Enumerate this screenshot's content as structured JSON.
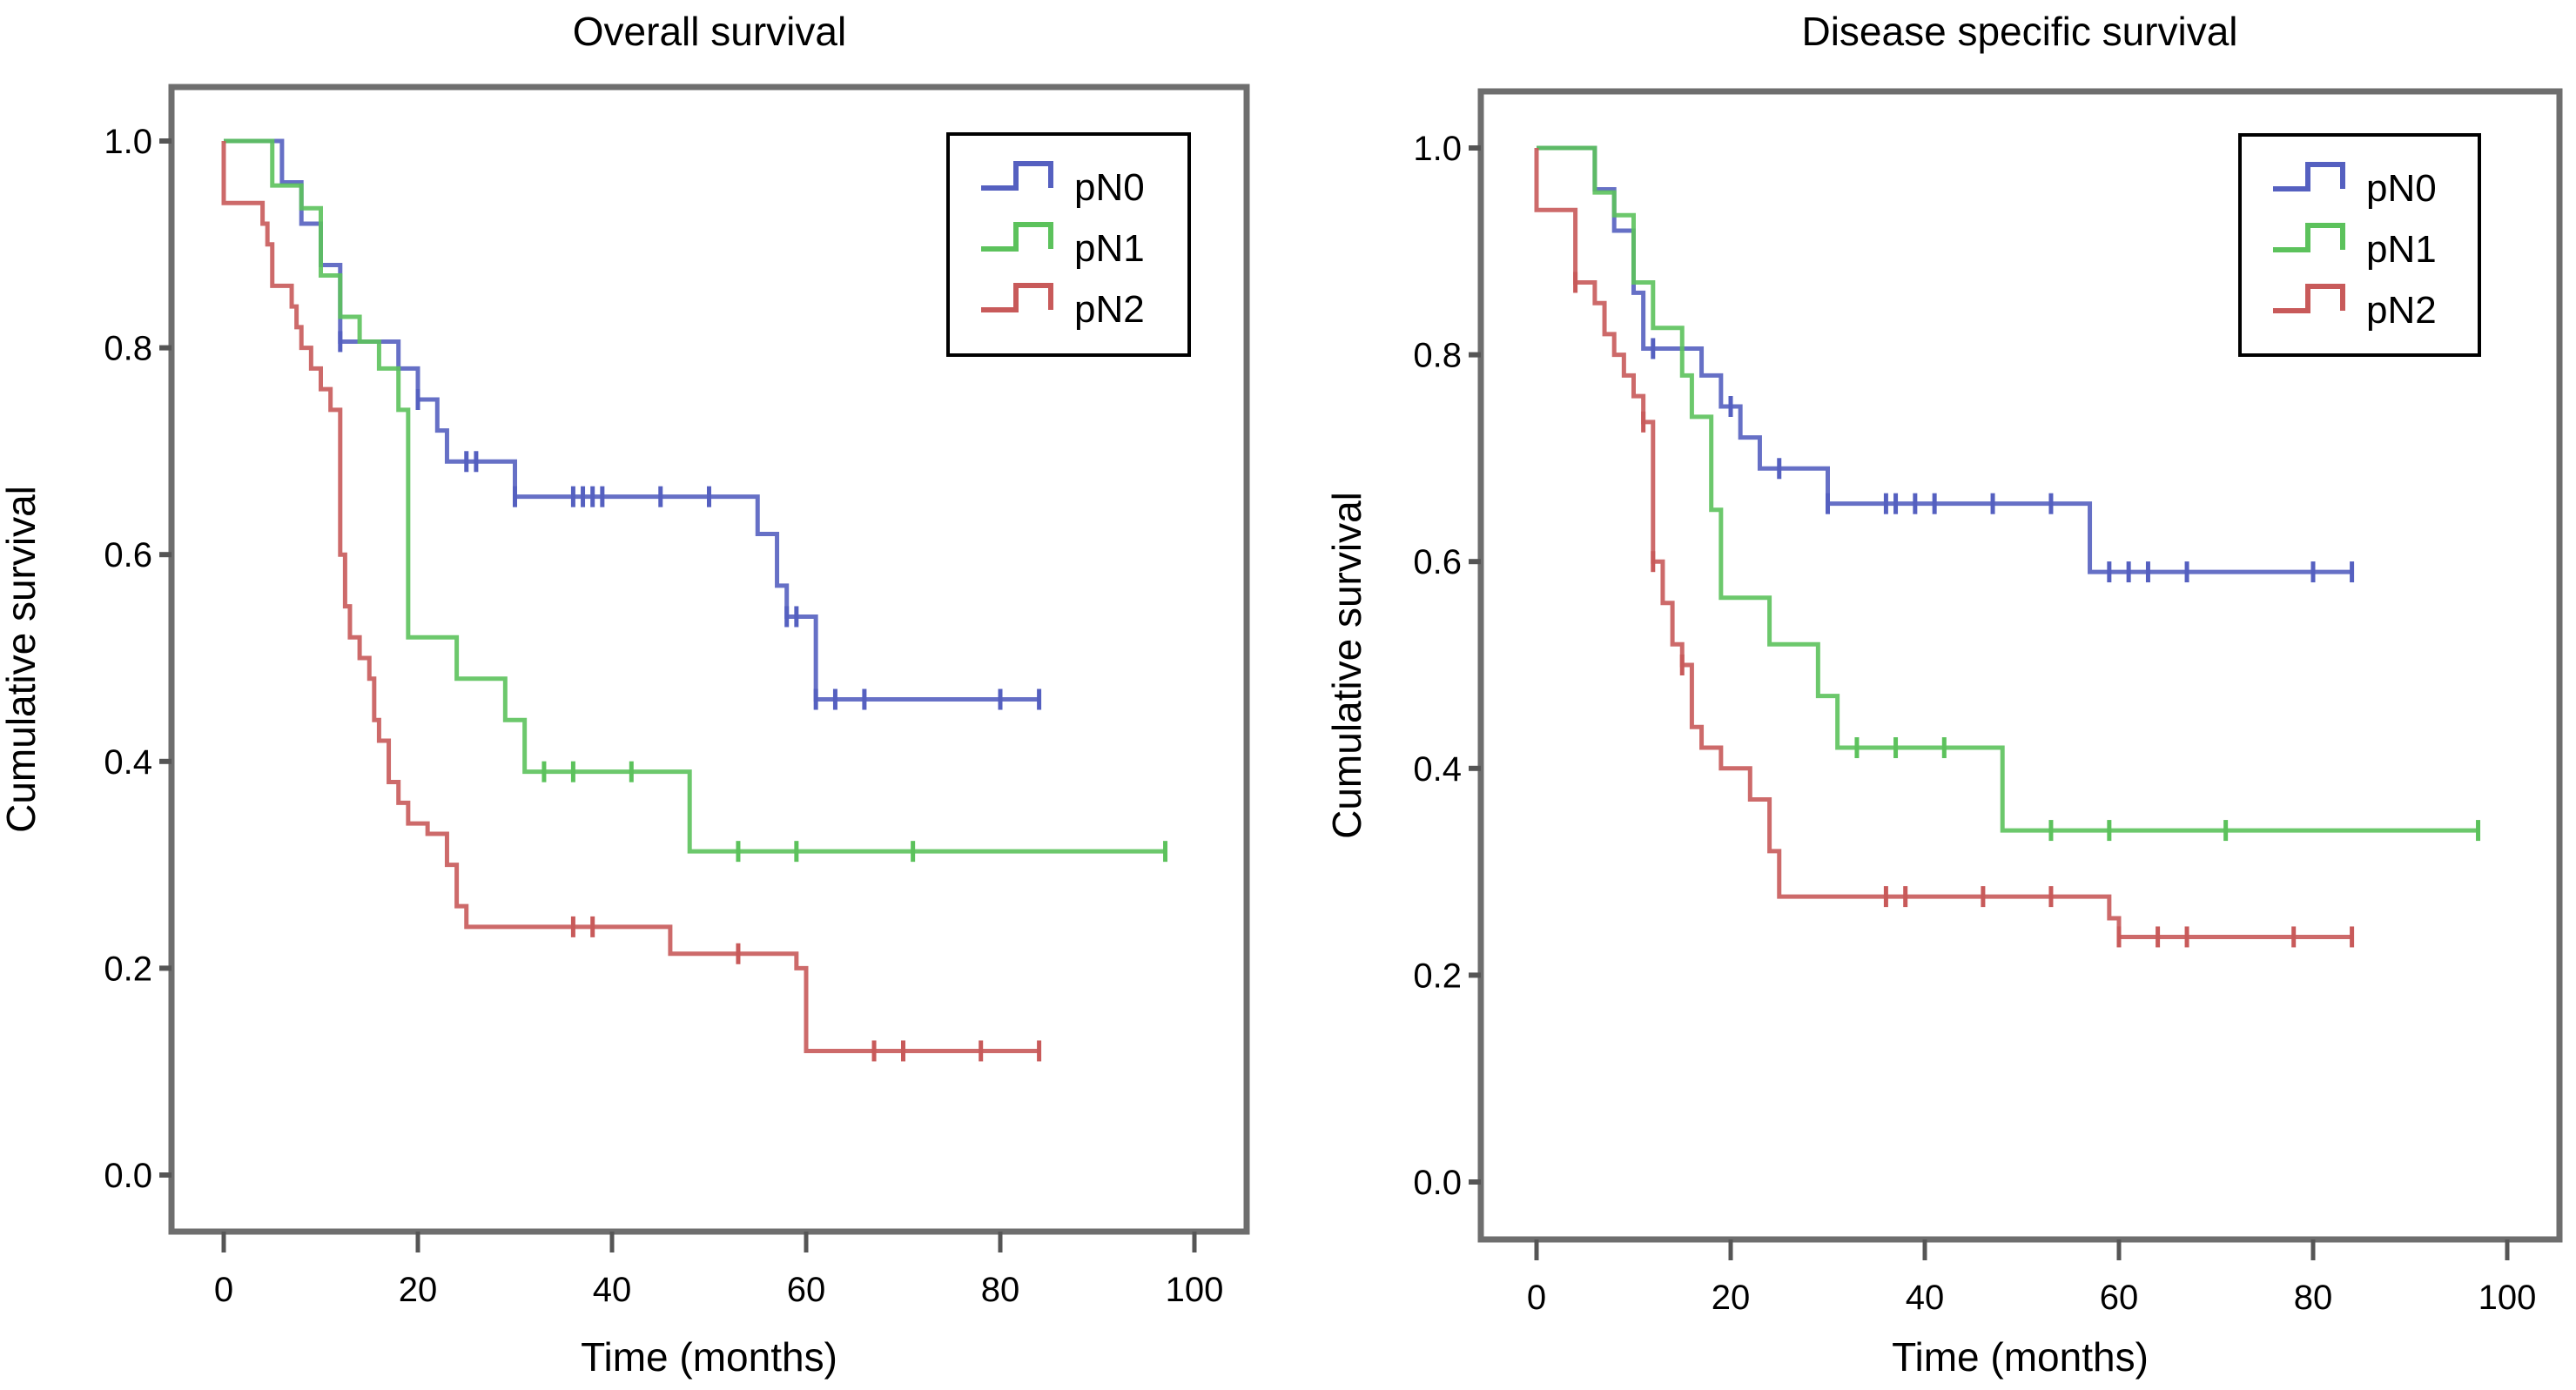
{
  "chart_data": [
    {
      "type": "line",
      "subtype": "kaplan-meier step",
      "title": "Overall survival",
      "xlabel": "Time (months)",
      "ylabel": "Cumulative survival",
      "xlim": [
        0,
        100
      ],
      "ylim": [
        0,
        1
      ],
      "xticks": [
        "0",
        "20",
        "40",
        "60",
        "80",
        "100"
      ],
      "yticks": [
        "0.0",
        "0.2",
        "0.4",
        "0.6",
        "0.8",
        "1.0"
      ],
      "legend": {
        "placement": "top-right",
        "entries": [
          "pN0",
          "pN1",
          "pN2"
        ]
      },
      "series": [
        {
          "name": "pN0",
          "color": "#5560c0",
          "steps": [
            [
              0,
              1.0
            ],
            [
              6,
              0.96
            ],
            [
              8,
              0.92
            ],
            [
              10,
              0.88
            ],
            [
              12,
              0.806
            ],
            [
              17,
              0.806
            ],
            [
              18,
              0.78
            ],
            [
              20,
              0.75
            ],
            [
              22,
              0.72
            ],
            [
              23,
              0.69
            ],
            [
              30,
              0.656
            ],
            [
              55,
              0.62
            ],
            [
              57,
              0.57
            ],
            [
              58,
              0.54
            ],
            [
              61,
              0.46
            ],
            [
              84,
              0.46
            ]
          ],
          "censored": [
            [
              12,
              0.806
            ],
            [
              20,
              0.75
            ],
            [
              25,
              0.69
            ],
            [
              26,
              0.69
            ],
            [
              30,
              0.656
            ],
            [
              36,
              0.656
            ],
            [
              37,
              0.656
            ],
            [
              38,
              0.656
            ],
            [
              39,
              0.656
            ],
            [
              45,
              0.656
            ],
            [
              50,
              0.656
            ],
            [
              58,
              0.54
            ],
            [
              59,
              0.54
            ],
            [
              61,
              0.46
            ],
            [
              63,
              0.46
            ],
            [
              66,
              0.46
            ],
            [
              80,
              0.46
            ],
            [
              84,
              0.46
            ]
          ]
        },
        {
          "name": "pN1",
          "color": "#5cc25c",
          "steps": [
            [
              0,
              1.0
            ],
            [
              5,
              0.957
            ],
            [
              8,
              0.935
            ],
            [
              10,
              0.87
            ],
            [
              12,
              0.83
            ],
            [
              14,
              0.806
            ],
            [
              16,
              0.78
            ],
            [
              18,
              0.74
            ],
            [
              19,
              0.52
            ],
            [
              24,
              0.48
            ],
            [
              29,
              0.44
            ],
            [
              31,
              0.39
            ],
            [
              48,
              0.313
            ],
            [
              97,
              0.313
            ]
          ],
          "censored": [
            [
              33,
              0.39
            ],
            [
              36,
              0.39
            ],
            [
              42,
              0.39
            ],
            [
              53,
              0.313
            ],
            [
              59,
              0.313
            ],
            [
              71,
              0.313
            ],
            [
              97,
              0.313
            ]
          ]
        },
        {
          "name": "pN2",
          "color": "#c85a5a",
          "steps": [
            [
              0,
              1.0
            ],
            [
              0,
              0.94
            ],
            [
              4,
              0.92
            ],
            [
              4.5,
              0.9
            ],
            [
              5,
              0.86
            ],
            [
              7,
              0.84
            ],
            [
              7.5,
              0.82
            ],
            [
              8,
              0.8
            ],
            [
              9,
              0.78
            ],
            [
              10,
              0.76
            ],
            [
              11,
              0.74
            ],
            [
              12,
              0.6
            ],
            [
              12.5,
              0.55
            ],
            [
              13,
              0.52
            ],
            [
              14,
              0.5
            ],
            [
              15,
              0.48
            ],
            [
              15.5,
              0.44
            ],
            [
              16,
              0.42
            ],
            [
              17,
              0.38
            ],
            [
              18,
              0.36
            ],
            [
              19,
              0.34
            ],
            [
              21,
              0.33
            ],
            [
              23,
              0.3
            ],
            [
              24,
              0.26
            ],
            [
              25,
              0.24
            ],
            [
              46,
              0.214
            ],
            [
              59,
              0.2
            ],
            [
              60,
              0.12
            ],
            [
              84,
              0.12
            ]
          ],
          "censored": [
            [
              36,
              0.24
            ],
            [
              38,
              0.24
            ],
            [
              53,
              0.214
            ],
            [
              67,
              0.12
            ],
            [
              70,
              0.12
            ],
            [
              78,
              0.12
            ],
            [
              84,
              0.12
            ]
          ]
        }
      ]
    },
    {
      "type": "line",
      "subtype": "kaplan-meier step",
      "title": "Disease specific survival",
      "xlabel": "Time (months)",
      "ylabel": "Cumulative survival",
      "xlim": [
        0,
        100
      ],
      "ylim": [
        0,
        1
      ],
      "xticks": [
        "0",
        "20",
        "40",
        "60",
        "80",
        "100"
      ],
      "yticks": [
        "0.0",
        "0.2",
        "0.4",
        "0.6",
        "0.8",
        "1.0"
      ],
      "legend": {
        "placement": "top-right",
        "entries": [
          "pN0",
          "pN1",
          "pN2"
        ]
      },
      "series": [
        {
          "name": "pN0",
          "color": "#5560c0",
          "steps": [
            [
              0,
              1.0
            ],
            [
              6,
              0.96
            ],
            [
              8,
              0.92
            ],
            [
              10,
              0.86
            ],
            [
              11,
              0.806
            ],
            [
              17,
              0.78
            ],
            [
              19,
              0.75
            ],
            [
              21,
              0.72
            ],
            [
              23,
              0.69
            ],
            [
              30,
              0.656
            ],
            [
              57,
              0.59
            ],
            [
              84,
              0.59
            ]
          ],
          "censored": [
            [
              12,
              0.806
            ],
            [
              20,
              0.75
            ],
            [
              25,
              0.69
            ],
            [
              30,
              0.656
            ],
            [
              36,
              0.656
            ],
            [
              37,
              0.656
            ],
            [
              39,
              0.656
            ],
            [
              41,
              0.656
            ],
            [
              47,
              0.656
            ],
            [
              53,
              0.656
            ],
            [
              59,
              0.59
            ],
            [
              61,
              0.59
            ],
            [
              63,
              0.59
            ],
            [
              67,
              0.59
            ],
            [
              80,
              0.59
            ],
            [
              84,
              0.59
            ]
          ]
        },
        {
          "name": "pN1",
          "color": "#5cc25c",
          "steps": [
            [
              0,
              1.0
            ],
            [
              6,
              0.957
            ],
            [
              8,
              0.935
            ],
            [
              10,
              0.87
            ],
            [
              12,
              0.826
            ],
            [
              15,
              0.78
            ],
            [
              16,
              0.74
            ],
            [
              18,
              0.65
            ],
            [
              19,
              0.565
            ],
            [
              24,
              0.52
            ],
            [
              29,
              0.47
            ],
            [
              31,
              0.42
            ],
            [
              48,
              0.34
            ],
            [
              97,
              0.34
            ]
          ],
          "censored": [
            [
              33,
              0.42
            ],
            [
              37,
              0.42
            ],
            [
              42,
              0.42
            ],
            [
              53,
              0.34
            ],
            [
              59,
              0.34
            ],
            [
              71,
              0.34
            ],
            [
              97,
              0.34
            ]
          ]
        },
        {
          "name": "pN2",
          "color": "#c85a5a",
          "steps": [
            [
              0,
              1.0
            ],
            [
              0,
              0.94
            ],
            [
              4,
              0.87
            ],
            [
              6,
              0.85
            ],
            [
              7,
              0.82
            ],
            [
              8,
              0.8
            ],
            [
              9,
              0.78
            ],
            [
              10,
              0.76
            ],
            [
              11,
              0.735
            ],
            [
              12,
              0.6
            ],
            [
              13,
              0.56
            ],
            [
              14,
              0.52
            ],
            [
              15,
              0.5
            ],
            [
              16,
              0.44
            ],
            [
              17,
              0.42
            ],
            [
              19,
              0.4
            ],
            [
              22,
              0.37
            ],
            [
              24,
              0.32
            ],
            [
              25,
              0.276
            ],
            [
              59,
              0.255
            ],
            [
              60,
              0.237
            ],
            [
              84,
              0.237
            ]
          ],
          "censored": [
            [
              4,
              0.87
            ],
            [
              11,
              0.735
            ],
            [
              12,
              0.6
            ],
            [
              15,
              0.5
            ],
            [
              36,
              0.276
            ],
            [
              38,
              0.276
            ],
            [
              46,
              0.276
            ],
            [
              53,
              0.276
            ],
            [
              60,
              0.237
            ],
            [
              64,
              0.237
            ],
            [
              67,
              0.237
            ],
            [
              78,
              0.237
            ],
            [
              84,
              0.237
            ]
          ]
        }
      ]
    }
  ]
}
